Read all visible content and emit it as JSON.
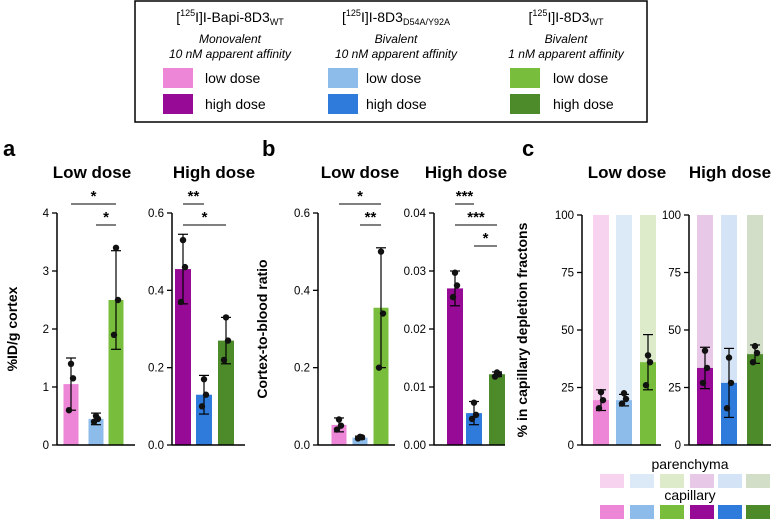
{
  "colors": {
    "pink": "#EE86D8",
    "purple": "#960A96",
    "light_blue": "#8DBCEA",
    "blue": "#2F7BDB",
    "light_green": "#78BE3C",
    "dark_green": "#4C8A2A",
    "pink_pale": "#F7D3F0",
    "purple_pale": "#E7C9E7",
    "light_blue_pale": "#DCE9F7",
    "blue_pale": "#D4E3F6",
    "light_green_pale": "#DDEBCB",
    "dark_green_pale": "#D2DEC7"
  },
  "legend": {
    "columns": [
      {
        "prefix": "[",
        "sup": "125",
        "mid": "I]I-Bapi-8D3",
        "sub": "WT",
        "line1": "Monovalent",
        "line2": "10 nM apparent affinity",
        "low": "low dose",
        "high": "high dose"
      },
      {
        "prefix": "[",
        "sup": "125",
        "mid": "I]I-8D3",
        "sub": "D54A/Y92A",
        "line1": "Bivalent",
        "line2": "10 nM apparent affinity",
        "low": "low dose",
        "high": "high dose"
      },
      {
        "prefix": "[",
        "sup": "125",
        "mid": "I]I-8D3",
        "sub": "WT",
        "line1": "Bivalent",
        "line2": "1 nM apparent affinity",
        "low": "low dose",
        "high": "high dose"
      }
    ]
  },
  "panel_labels": {
    "a": "a",
    "b": "b",
    "c": "c"
  },
  "chart_data": [
    {
      "id": "a-low",
      "type": "bar",
      "panel": "a",
      "title": "Low dose",
      "ylabel": "%ID/g cortex",
      "ylim": [
        0,
        4
      ],
      "yticks": [
        "0",
        "1",
        "2",
        "3",
        "4"
      ],
      "categories": [
        "Bapi-8D3 WT",
        "8D3 D54A/Y92A",
        "8D3 WT"
      ],
      "values": [
        1.05,
        0.45,
        2.5
      ],
      "sd": [
        0.45,
        0.1,
        0.85
      ],
      "points": [
        [
          0.6,
          1.15,
          1.4
        ],
        [
          0.4,
          0.45,
          0.5
        ],
        [
          1.9,
          2.5,
          3.4
        ]
      ],
      "significance": [
        {
          "pair": [
            0,
            2
          ],
          "label": "*"
        },
        {
          "pair": [
            1,
            2
          ],
          "label": "*"
        }
      ]
    },
    {
      "id": "a-high",
      "type": "bar",
      "panel": "a",
      "title": "High dose",
      "ylabel": "",
      "ylim": [
        0,
        0.6
      ],
      "yticks": [
        "0.0",
        "0.2",
        "0.4",
        "0.6"
      ],
      "categories": [
        "Bapi-8D3 WT",
        "8D3 D54A/Y92A",
        "8D3 WT"
      ],
      "values": [
        0.455,
        0.13,
        0.27
      ],
      "sd": [
        0.09,
        0.05,
        0.06
      ],
      "points": [
        [
          0.37,
          0.46,
          0.53
        ],
        [
          0.1,
          0.13,
          0.17
        ],
        [
          0.22,
          0.27,
          0.33
        ]
      ],
      "significance": [
        {
          "pair": [
            0,
            1
          ],
          "label": "**"
        },
        {
          "pair": [
            0,
            2
          ],
          "label": "*"
        }
      ]
    },
    {
      "id": "b-low",
      "type": "bar",
      "panel": "b",
      "title": "Low dose",
      "ylabel": "Cortex-to-blood ratio",
      "ylim": [
        0,
        0.6
      ],
      "yticks": [
        "0.0",
        "0.2",
        "0.4",
        "0.6"
      ],
      "categories": [
        "Bapi-8D3 WT",
        "8D3 D54A/Y92A",
        "8D3 WT"
      ],
      "values": [
        0.052,
        0.019,
        0.355
      ],
      "sd": [
        0.018,
        0.004,
        0.155
      ],
      "points": [
        [
          0.04,
          0.05,
          0.066
        ],
        [
          0.017,
          0.02,
          0.021
        ],
        [
          0.2,
          0.34,
          0.5
        ]
      ],
      "significance": [
        {
          "pair": [
            0,
            2
          ],
          "label": "*"
        },
        {
          "pair": [
            1,
            2
          ],
          "label": "**"
        }
      ]
    },
    {
      "id": "b-high",
      "type": "bar",
      "panel": "b",
      "title": "High dose",
      "ylabel": "",
      "ylim": [
        0,
        0.04
      ],
      "yticks": [
        "0.00",
        "0.01",
        "0.02",
        "0.03",
        "0.04"
      ],
      "categories": [
        "Bapi-8D3 WT",
        "8D3 D54A/Y92A",
        "8D3 WT"
      ],
      "values": [
        0.027,
        0.0055,
        0.0122
      ],
      "sd": [
        0.003,
        0.002,
        0.0004
      ],
      "points": [
        [
          0.0255,
          0.0275,
          0.0297
        ],
        [
          0.0045,
          0.0052,
          0.0073
        ],
        [
          0.0118,
          0.0122,
          0.0125
        ]
      ],
      "significance": [
        {
          "pair": [
            0,
            1
          ],
          "label": "***"
        },
        {
          "pair": [
            0,
            2
          ],
          "label": "***"
        },
        {
          "pair": [
            1,
            2
          ],
          "label": "*"
        }
      ]
    },
    {
      "id": "c-low",
      "type": "bar",
      "panel": "c",
      "title": "Low dose",
      "ylabel": "% in capillary depletion fractons",
      "ylim": [
        0,
        100
      ],
      "yticks": [
        "0",
        "25",
        "50",
        "75",
        "100"
      ],
      "categories": [
        "Bapi-8D3 WT",
        "8D3 D54A/Y92A",
        "8D3 WT"
      ],
      "background_total": 100,
      "values": [
        19.5,
        19.5,
        36
      ],
      "sd": [
        4.5,
        2.5,
        12
      ],
      "points": [
        [
          16,
          19.5,
          23
        ],
        [
          18,
          20,
          22.5
        ],
        [
          26,
          36,
          39
        ]
      ],
      "significance": []
    },
    {
      "id": "c-high",
      "type": "bar",
      "panel": "c",
      "title": "High dose",
      "ylabel": "",
      "ylim": [
        0,
        100
      ],
      "yticks": [
        "0",
        "25",
        "50",
        "75",
        "100"
      ],
      "categories": [
        "Bapi-8D3 WT",
        "8D3 D54A/Y92A",
        "8D3 WT"
      ],
      "background_total": 100,
      "values": [
        33.5,
        27,
        39.5
      ],
      "sd": [
        9,
        15,
        4
      ],
      "points": [
        [
          27,
          33.5,
          41
        ],
        [
          16,
          27,
          38
        ],
        [
          36,
          40,
          43
        ]
      ],
      "significance": []
    }
  ],
  "fraction_legend": {
    "parenchyma": "parenchyma",
    "capillary": "capillary"
  }
}
